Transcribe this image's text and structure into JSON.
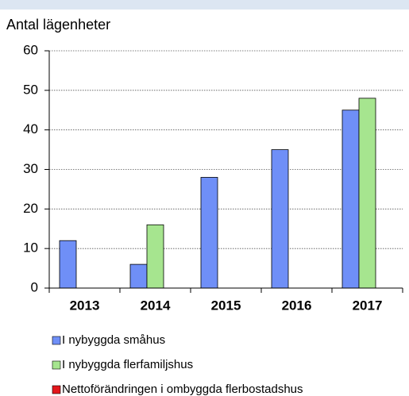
{
  "chart_data": {
    "type": "bar",
    "y_axis_label": "Antal lägenheter",
    "categories": [
      "2013",
      "2014",
      "2015",
      "2016",
      "2017"
    ],
    "series": [
      {
        "name": "I nybyggda småhus",
        "color": "#6f8ff7",
        "values": [
          12,
          6,
          28,
          35,
          45
        ]
      },
      {
        "name": "I nybyggda flerfamiljshus",
        "color": "#a6e58f",
        "values": [
          0,
          16,
          0,
          0,
          48
        ]
      },
      {
        "name": "Nettoförändringen i ombyggda flerbostadshus",
        "color": "#e3171c",
        "values": [
          0,
          0,
          0,
          0,
          0
        ]
      }
    ],
    "ylim": [
      0,
      60
    ],
    "yticks": [
      0,
      10,
      20,
      30,
      40,
      50,
      60
    ],
    "grid": true
  }
}
